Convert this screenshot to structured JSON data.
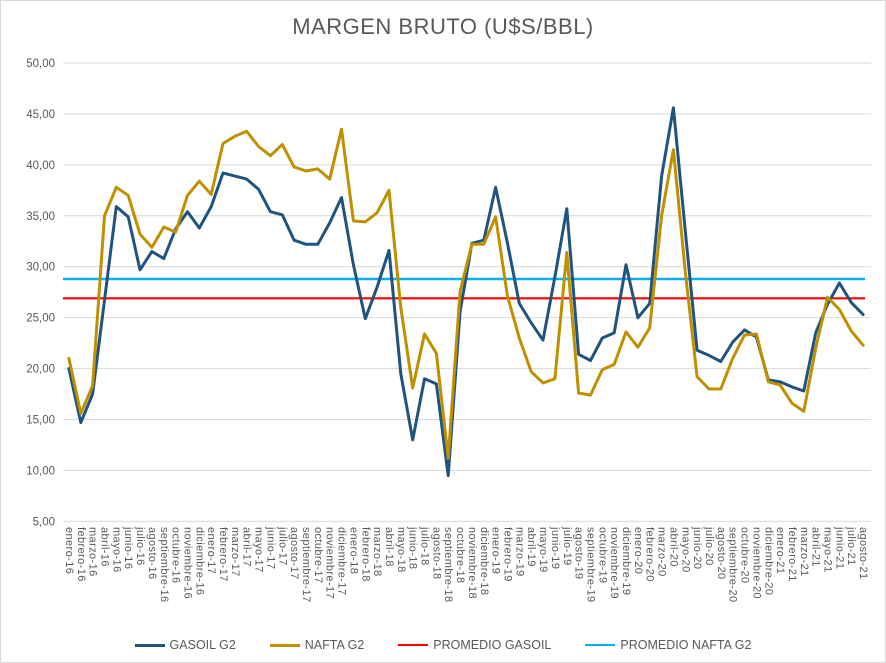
{
  "chart_data": {
    "type": "line",
    "title": "MARGEN BRUTO (U$S/BBL)",
    "xlabel": "",
    "ylabel": "",
    "grid": true,
    "legend_position": "bottom",
    "y_axis": {
      "min": 5,
      "max": 50,
      "step": 5,
      "tick_labels": [
        "50,00",
        "45,00",
        "40,00",
        "35,00",
        "30,00",
        "25,00",
        "20,00",
        "15,00",
        "10,00",
        "5,00"
      ]
    },
    "x_labels": [
      "enero-16",
      "febrero-16",
      "marzo-16",
      "abril-16",
      "mayo-16",
      "junio-16",
      "julio-16",
      "agosto-16",
      "septiembre-16",
      "octubre-16",
      "noviembre-16",
      "diciembre-16",
      "enero-17",
      "febrero-17",
      "marzo-17",
      "abril-17",
      "mayo-17",
      "junio-17",
      "julio-17",
      "agosto-17",
      "septiembre-17",
      "octubre-17",
      "noviembre-17",
      "diciembre-17",
      "enero-18",
      "febrero-18",
      "marzo-18",
      "abril-18",
      "mayo-18",
      "junio-18",
      "julio-18",
      "agosto-18",
      "septiembre-18",
      "octubre-18",
      "noviembre-18",
      "diciembre-18",
      "enero-19",
      "febrero-19",
      "marzo-19",
      "abril-19",
      "mayo-19",
      "junio-19",
      "julio-19",
      "agosto-19",
      "septiembre-19",
      "octubre-19",
      "noviembre-19",
      "diciembre-19",
      "enero-20",
      "febrero-20",
      "marzo-20",
      "abril-20",
      "mayo-20",
      "junio-20",
      "julio-20",
      "agosto-20",
      "septiembre-20",
      "octubre-20",
      "noviembre-20",
      "diciembre-20",
      "enero-21",
      "febrero-21",
      "marzo-21",
      "abril-21",
      "mayo-21",
      "junio-21",
      "julio-21",
      "agosto-21"
    ],
    "series": [
      {
        "name": "GASOIL G2",
        "color": "#21537f",
        "width": 3,
        "values": [
          20.0,
          14.7,
          17.5,
          26.7,
          35.9,
          34.9,
          29.7,
          31.5,
          30.8,
          33.7,
          35.4,
          33.8,
          35.9,
          39.2,
          38.9,
          38.6,
          37.6,
          35.4,
          35.1,
          32.6,
          32.2,
          32.2,
          34.3,
          36.8,
          30.2,
          24.9,
          28.0,
          31.6,
          19.5,
          13.0,
          19.0,
          18.5,
          9.5,
          25.6,
          32.3,
          32.6,
          37.8,
          32.3,
          26.4,
          24.5,
          22.8,
          29.0,
          35.7,
          21.4,
          20.8,
          23.0,
          23.5,
          30.2,
          25.0,
          26.4,
          38.9,
          45.6,
          33.5,
          21.8,
          21.3,
          20.7,
          22.6,
          23.8,
          23.1,
          18.9,
          18.7,
          18.2,
          17.8,
          23.5,
          26.3,
          28.4,
          26.5,
          25.3
        ]
      },
      {
        "name": "NAFTA G2",
        "color": "#bf9000",
        "width": 3,
        "values": [
          21.0,
          15.6,
          18.3,
          35.0,
          37.8,
          37.0,
          33.2,
          31.9,
          33.9,
          33.4,
          37.0,
          38.4,
          37.1,
          42.1,
          42.8,
          43.3,
          41.8,
          40.9,
          42.0,
          39.8,
          39.4,
          39.6,
          38.6,
          43.5,
          34.5,
          34.4,
          35.3,
          37.5,
          26.0,
          18.1,
          23.4,
          21.5,
          11.2,
          27.6,
          32.2,
          32.2,
          34.9,
          27.1,
          23.0,
          19.7,
          18.6,
          19.0,
          31.4,
          17.6,
          17.4,
          19.9,
          20.4,
          23.6,
          22.1,
          24.0,
          35.0,
          41.5,
          29.5,
          19.2,
          18.0,
          18.0,
          21.0,
          23.3,
          23.4,
          18.7,
          18.4,
          16.6,
          15.8,
          22.0,
          27.0,
          25.8,
          23.7,
          22.3
        ]
      }
    ],
    "reference_lines": [
      {
        "name": "PROMEDIO GASOIL",
        "value": 26.9,
        "color": "#ff0000",
        "width": 2.2
      },
      {
        "name": "PROMEDIO NAFTA G2",
        "value": 28.8,
        "color": "#00b0f0",
        "width": 2.5
      }
    ]
  },
  "legend": {
    "items": [
      {
        "label": "GASOIL G2",
        "color": "#21537f",
        "thickness": 3
      },
      {
        "label": "NAFTA G2",
        "color": "#bf9000",
        "thickness": 3
      },
      {
        "label": "PROMEDIO GASOIL",
        "color": "#ff0000",
        "thickness": 2.2
      },
      {
        "label": "PROMEDIO NAFTA G2",
        "color": "#00b0f0",
        "thickness": 2.5
      }
    ]
  },
  "style": {
    "grid_color": "#d9d9d9",
    "text_color": "#595959",
    "background": "#ffffff"
  }
}
